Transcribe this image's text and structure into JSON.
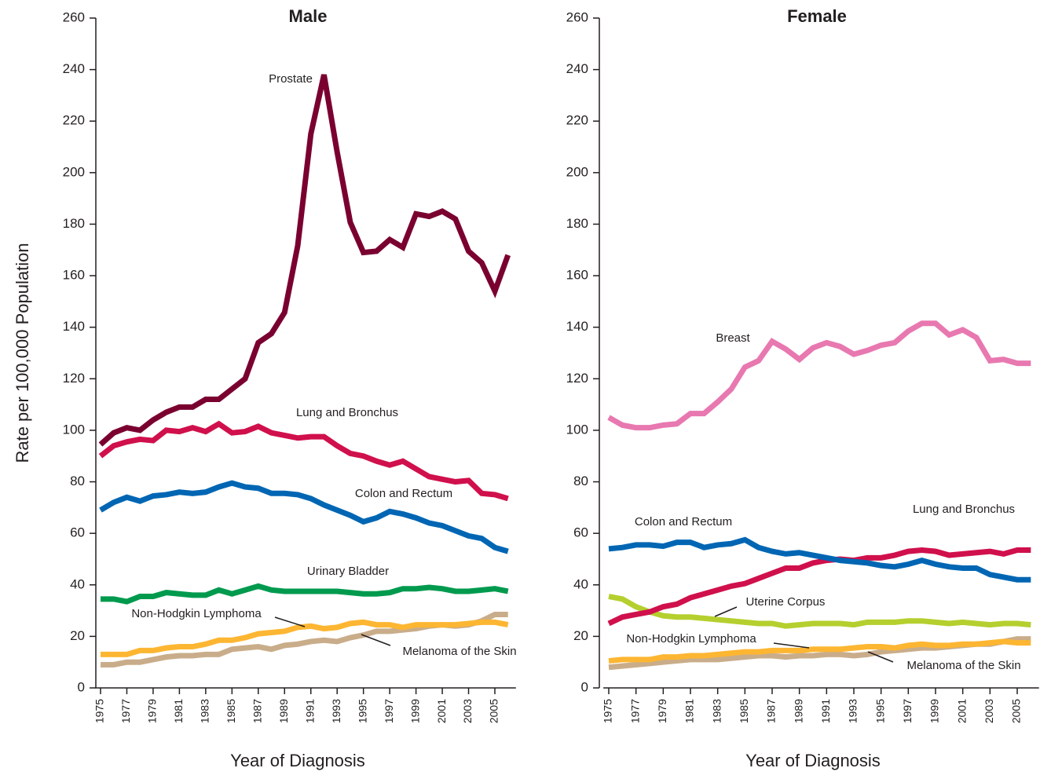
{
  "chart_data": [
    {
      "type": "line",
      "title": "Male",
      "ylabel": "Rate per 100,000 Population",
      "xlabel": "Year of Diagnosis",
      "x": [
        1975,
        1976,
        1977,
        1978,
        1979,
        1980,
        1981,
        1982,
        1983,
        1984,
        1985,
        1986,
        1987,
        1988,
        1989,
        1990,
        1991,
        1992,
        1993,
        1994,
        1995,
        1996,
        1997,
        1998,
        1999,
        2000,
        2001,
        2002,
        2003,
        2004,
        2005,
        2006
      ],
      "xlim": [
        1974.6,
        2006.6
      ],
      "xticks": [
        1975,
        1977,
        1979,
        1981,
        1983,
        1985,
        1987,
        1989,
        1991,
        1993,
        1995,
        1997,
        1999,
        2001,
        2003,
        2005
      ],
      "ylim": [
        0,
        260
      ],
      "yticks": [
        0,
        20,
        40,
        60,
        80,
        100,
        120,
        140,
        160,
        180,
        200,
        220,
        240,
        260
      ],
      "series": [
        {
          "name": "Prostate",
          "color": "#7a0030",
          "values": [
            94.5,
            99,
            101,
            100,
            104,
            107,
            109,
            109,
            112,
            112,
            116,
            120,
            134,
            137.5,
            145.7,
            171.6,
            215,
            238,
            208,
            180.7,
            169,
            169.5,
            174,
            171,
            184,
            183,
            185,
            182,
            169.5,
            165,
            154,
            168
          ]
        },
        {
          "name": "Lung and Bronchus",
          "color": "#d0104c",
          "values": [
            90,
            94,
            95.5,
            96.5,
            96,
            100,
            99.5,
            101,
            99.5,
            102.5,
            99,
            99.5,
            101.5,
            99,
            98,
            97,
            97.5,
            97.5,
            94,
            91,
            90,
            88,
            86.5,
            88,
            85,
            82,
            81,
            80,
            80.5,
            75.5,
            75,
            73.5
          ]
        },
        {
          "name": "Colon and Rectum",
          "color": "#0066b3",
          "values": [
            69,
            72,
            74,
            72.5,
            74.5,
            75,
            76,
            75.5,
            76,
            78,
            79.5,
            78,
            77.5,
            75.5,
            75.5,
            75,
            73.5,
            71,
            69,
            67,
            64.5,
            66,
            68.5,
            67.5,
            66,
            64,
            63,
            61,
            59,
            58,
            54.5,
            53
          ]
        },
        {
          "name": "Urinary Bladder",
          "color": "#009a4e",
          "values": [
            34.5,
            34.5,
            33.5,
            35.5,
            35.5,
            37,
            36.5,
            36,
            36,
            38,
            36.5,
            38,
            39.5,
            38,
            37.5,
            37.5,
            37.5,
            37.5,
            37.5,
            37,
            36.5,
            36.5,
            37,
            38.5,
            38.5,
            39,
            38.5,
            37.5,
            37.5,
            38,
            38.5,
            37.5
          ]
        },
        {
          "name": "Non-Hodgkin Lymphoma",
          "color": "#fdb632",
          "values": [
            13,
            13,
            13,
            14.5,
            14.5,
            15.5,
            16,
            16,
            17,
            18.5,
            18.5,
            19.5,
            21,
            21.5,
            22,
            23.5,
            24,
            23,
            23.5,
            25,
            25.5,
            24.5,
            24.5,
            23.5,
            24.5,
            24.5,
            24.5,
            24.5,
            25,
            25.5,
            25.5,
            24.5
          ]
        },
        {
          "name": "Melanoma of the Skin",
          "color": "#c9ad8a",
          "values": [
            9,
            9,
            10,
            10,
            11,
            12,
            12.5,
            12.5,
            13,
            13,
            15,
            15.5,
            16,
            15,
            16.5,
            17,
            18,
            18.5,
            18,
            19.5,
            20.5,
            22,
            22,
            22.5,
            23,
            24,
            24.5,
            24,
            24.5,
            26,
            28.5,
            28.5
          ]
        }
      ]
    },
    {
      "type": "line",
      "title": "Female",
      "xlabel": "Year of Diagnosis",
      "x": [
        1975,
        1976,
        1977,
        1978,
        1979,
        1980,
        1981,
        1982,
        1983,
        1984,
        1985,
        1986,
        1987,
        1988,
        1989,
        1990,
        1991,
        1992,
        1993,
        1994,
        1995,
        1996,
        1997,
        1998,
        1999,
        2000,
        2001,
        2002,
        2003,
        2004,
        2005,
        2006
      ],
      "xlim": [
        1974.6,
        2006.6
      ],
      "xticks": [
        1975,
        1977,
        1979,
        1981,
        1983,
        1985,
        1987,
        1989,
        1991,
        1993,
        1995,
        1997,
        1999,
        2001,
        2003,
        2005
      ],
      "ylim": [
        0,
        260
      ],
      "yticks": [
        0,
        20,
        40,
        60,
        80,
        100,
        120,
        140,
        160,
        180,
        200,
        220,
        240,
        260
      ],
      "series": [
        {
          "name": "Breast",
          "color": "#e878b0",
          "values": [
            105,
            102,
            101,
            101,
            102,
            102.5,
            106.5,
            106.5,
            111,
            116,
            124.5,
            127,
            134.5,
            131.5,
            127.5,
            132,
            134,
            132.5,
            129.5,
            131,
            133,
            134,
            138.5,
            141.5,
            141.5,
            137,
            139,
            136,
            127,
            127.5,
            126,
            126
          ]
        },
        {
          "name": "Colon and Rectum",
          "color": "#0066b3",
          "values": [
            54,
            54.5,
            55.5,
            55.5,
            55,
            56.5,
            56.5,
            54.5,
            55.5,
            56,
            57.5,
            54.5,
            53,
            52,
            52.5,
            51.5,
            50.5,
            49.5,
            49,
            48.5,
            47.5,
            47,
            48,
            49.5,
            48,
            47,
            46.5,
            46.5,
            44,
            43,
            42,
            42
          ]
        },
        {
          "name": "Lung and Bronchus",
          "color": "#d0104c",
          "values": [
            25,
            27.5,
            28.5,
            29.5,
            31.5,
            32.5,
            35,
            36.5,
            38,
            39.5,
            40.5,
            42.5,
            44.5,
            46.5,
            46.5,
            48.5,
            49.5,
            50,
            49.5,
            50.5,
            50.5,
            51.5,
            53,
            53.5,
            53,
            51.5,
            52,
            52.5,
            53,
            52,
            53.5,
            53.5
          ]
        },
        {
          "name": "Uterine Corpus",
          "color": "#b5cf2e",
          "values": [
            35.5,
            34.5,
            31.5,
            29.5,
            28,
            27.5,
            27.5,
            27,
            26.5,
            26,
            25.5,
            25,
            25,
            24,
            24.5,
            25,
            25,
            25,
            24.5,
            25.5,
            25.5,
            25.5,
            26,
            26,
            25.5,
            25,
            25.5,
            25,
            24.5,
            25,
            25,
            24.5
          ]
        },
        {
          "name": "Non-Hodgkin Lymphoma",
          "color": "#fdb632",
          "values": [
            10.5,
            11,
            11,
            11,
            12,
            12,
            12.5,
            12.5,
            13,
            13.5,
            14,
            14,
            14.5,
            14.5,
            14.5,
            15,
            15,
            15,
            15.5,
            16,
            16,
            15.5,
            16.5,
            17,
            16.5,
            16.5,
            17,
            17,
            17.5,
            18,
            17.5,
            17.5
          ]
        },
        {
          "name": "Melanoma of the Skin",
          "color": "#c9ad8a",
          "values": [
            8,
            8.5,
            9,
            9.5,
            10,
            10.5,
            11,
            11,
            11,
            11.5,
            12,
            12.5,
            12.5,
            12,
            12.5,
            12.5,
            13,
            13,
            12.5,
            13,
            14,
            14.5,
            15,
            15.5,
            15.5,
            16,
            16.5,
            17,
            17,
            18,
            19,
            19
          ]
        }
      ]
    }
  ]
}
